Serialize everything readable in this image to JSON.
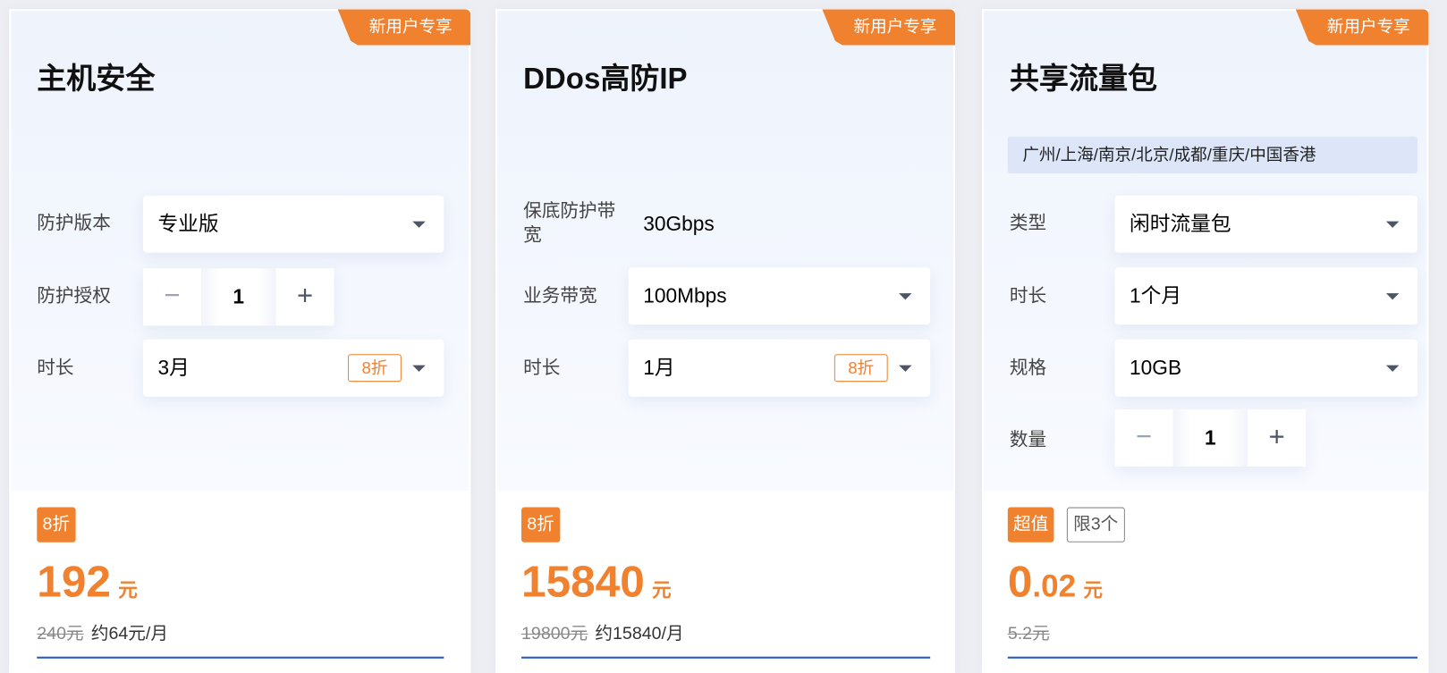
{
  "accent": "#f0812f",
  "cards": [
    {
      "badge": "新用户专享",
      "title": "主机安全",
      "rows": [
        {
          "label": "防护版本",
          "value": "专业版"
        },
        {
          "label": "防护授权",
          "value": "1"
        },
        {
          "label": "时长",
          "value": "3月",
          "discount": "8折"
        }
      ],
      "tags": [
        "8折"
      ],
      "price_int": "192",
      "price_unit": "元",
      "original": "240元",
      "monthly": "约64元/月"
    },
    {
      "badge": "新用户专享",
      "title": "DDos高防IP",
      "rows": [
        {
          "label": "保底防护带宽",
          "value": "30Gbps"
        },
        {
          "label": "业务带宽",
          "value": "100Mbps"
        },
        {
          "label": "时长",
          "value": "1月",
          "discount": "8折"
        }
      ],
      "tags": [
        "8折"
      ],
      "price_int": "15840",
      "price_unit": "元",
      "original": "19800元",
      "monthly": "约15840/月"
    },
    {
      "badge": "新用户专享",
      "title": "共享流量包",
      "region": "广州/上海/南京/北京/成都/重庆/中国香港",
      "rows": [
        {
          "label": "类型",
          "value": "闲时流量包"
        },
        {
          "label": "时长",
          "value": "1个月"
        },
        {
          "label": "规格",
          "value": "10GB"
        },
        {
          "label": "数量",
          "value": "1"
        }
      ],
      "tags": [
        "超值",
        "限3个"
      ],
      "price_int": "0",
      "price_dec": ".02",
      "price_unit": "元",
      "original": "5.2元"
    }
  ],
  "stepper": {
    "minus": "−",
    "plus": "+"
  }
}
